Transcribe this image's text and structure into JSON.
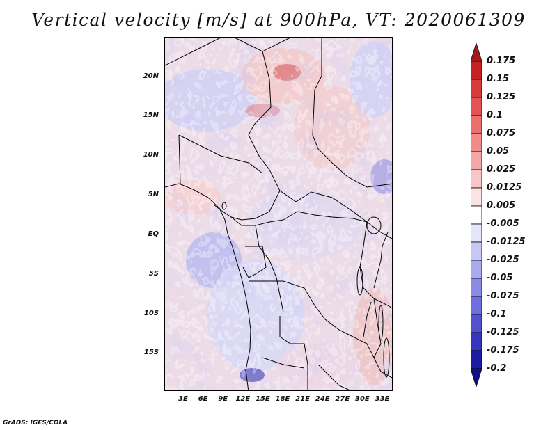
{
  "title": "Vertical velocity [m/s] at 900hPa, VT: 2020061309",
  "map": {
    "lat_labels": [
      "20N",
      "15N",
      "10N",
      "5N",
      "EQ",
      "5S",
      "10S",
      "15S"
    ],
    "lon_labels": [
      "3E",
      "6E",
      "9E",
      "12E",
      "15E",
      "18E",
      "21E",
      "24E",
      "27E",
      "30E",
      "33E"
    ]
  },
  "colorbar": {
    "labels": [
      "0.175",
      "0.15",
      "0.125",
      "0.1",
      "0.075",
      "0.05",
      "0.025",
      "0.0125",
      "0.005",
      "-0.005",
      "-0.0125",
      "-0.025",
      "-0.05",
      "-0.075",
      "-0.1",
      "-0.125",
      "-0.175",
      "-0.2"
    ],
    "colors": [
      "#a11a1a",
      "#c32323",
      "#d63a3a",
      "#e35353",
      "#ea6f6f",
      "#ef8b8b",
      "#f4a7a7",
      "#f8c6c6",
      "#fbe3e3",
      "#ffffff",
      "#e4e4fb",
      "#c8c8f4",
      "#a9a9ee",
      "#8b8be6",
      "#6e6edc",
      "#5252cf",
      "#3535bd",
      "#1c1ca3",
      "#10108a"
    ]
  },
  "footer": "GrADS: IGES/COLA"
}
